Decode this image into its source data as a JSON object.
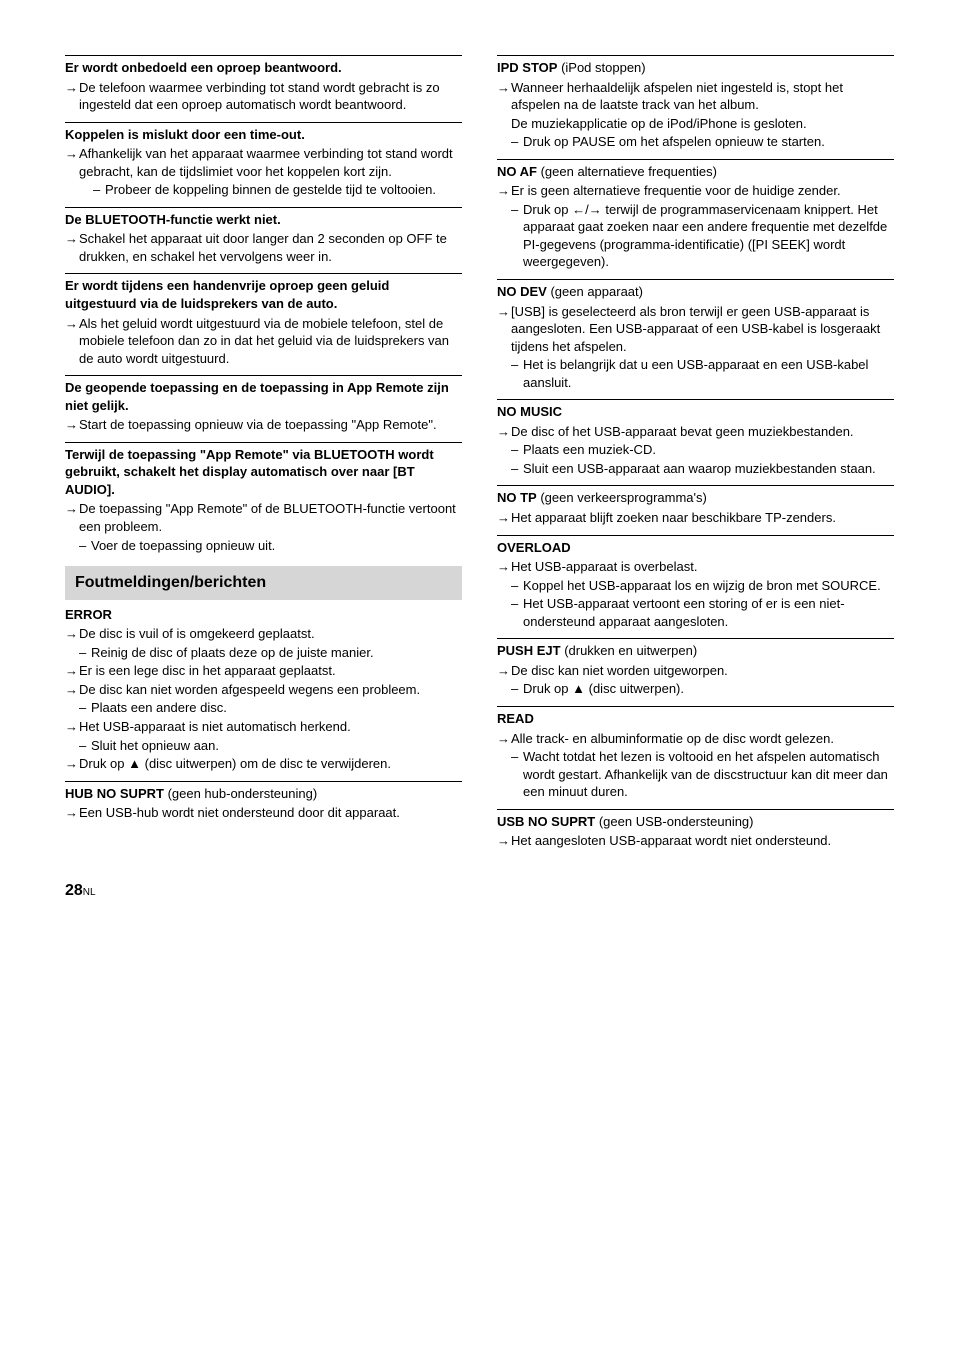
{
  "left": {
    "e1": {
      "title": "Er wordt onbedoeld een oproep beantwoord.",
      "l1": "De telefoon waarmee verbinding tot stand wordt gebracht is zo ingesteld dat een oproep automatisch wordt beantwoord."
    },
    "e2": {
      "title": "Koppelen is mislukt door een time-out.",
      "l1": "Afhankelijk van het apparaat waarmee verbinding tot stand wordt gebracht, kan de tijdslimiet voor het koppelen kort zijn.",
      "d1": "Probeer de koppeling binnen de gestelde tijd te voltooien."
    },
    "e3": {
      "title": "De BLUETOOTH-functie werkt niet.",
      "l1": "Schakel het apparaat uit door langer dan 2 seconden op OFF te drukken, en schakel het vervolgens weer in."
    },
    "e4": {
      "title": "Er wordt tijdens een handenvrije oproep geen geluid uitgestuurd via de luidsprekers van de auto.",
      "l1": "Als het geluid wordt uitgestuurd via de mobiele telefoon, stel de mobiele telefoon dan zo in dat het geluid via de luidsprekers van de auto wordt uitgestuurd."
    },
    "e5": {
      "title": "De geopende toepassing en de toepassing in App Remote zijn niet gelijk.",
      "l1": "Start de toepassing opnieuw via de toepassing \"App Remote\"."
    },
    "e6": {
      "title": "Terwijl de toepassing \"App Remote\" via BLUETOOTH wordt gebruikt, schakelt het display automatisch over naar [BT AUDIO].",
      "l1": "De toepassing \"App Remote\" of de BLUETOOTH-functie vertoont een probleem.",
      "d1": "Voer de toepassing opnieuw uit."
    },
    "sectionHdr": "Foutmeldingen/berichten",
    "e7": {
      "title": "ERROR",
      "l1": "De disc is vuil of is omgekeerd geplaatst.",
      "d1": "Reinig de disc of plaats deze op de juiste manier.",
      "l2": "Er is een lege disc in het apparaat geplaatst.",
      "l3": "De disc kan niet worden afgespeeld wegens een probleem.",
      "d2": "Plaats een andere disc.",
      "l4": "Het USB-apparaat is niet automatisch herkend.",
      "d3": "Sluit het opnieuw aan.",
      "l5a": "Druk op ",
      "l5b": " (disc uitwerpen) om de disc te verwijderen."
    },
    "e8": {
      "title": "HUB NO SUPRT",
      "gloss": " (geen hub-ondersteuning)",
      "l1": "Een USB-hub wordt niet ondersteund door dit apparaat."
    }
  },
  "right": {
    "r1": {
      "title": "IPD STOP",
      "gloss": " (iPod stoppen)",
      "l1": "Wanneer herhaaldelijk afspelen niet ingesteld is, stopt het afspelen na de laatste track van het album.",
      "c1": "De muziekapplicatie op de iPod/iPhone is gesloten.",
      "d1": "Druk op PAUSE om het afspelen opnieuw te starten."
    },
    "r2": {
      "title": "NO AF",
      "gloss": " (geen alternatieve frequenties)",
      "l1": "Er is geen alternatieve frequentie voor de huidige zender.",
      "d1a": "Druk op ",
      "d1b": " terwijl de programmaservicenaam knippert. Het apparaat gaat zoeken naar een andere frequentie met dezelfde PI-gegevens (programma-identificatie) ([PI SEEK] wordt weergegeven)."
    },
    "r3": {
      "title": "NO DEV",
      "gloss": " (geen apparaat)",
      "l1": "[USB] is geselecteerd als bron terwijl er geen USB-apparaat is aangesloten. Een USB-apparaat of een USB-kabel is losgeraakt tijdens het afspelen.",
      "d1": "Het is belangrijk dat u een USB-apparaat en een USB-kabel aansluit."
    },
    "r4": {
      "title": "NO MUSIC",
      "l1": "De disc of het USB-apparaat bevat geen muziekbestanden.",
      "d1": "Plaats een muziek-CD.",
      "d2": "Sluit een USB-apparaat aan waarop muziekbestanden staan."
    },
    "r5": {
      "title": "NO TP",
      "gloss": " (geen verkeersprogramma's)",
      "l1": "Het apparaat blijft zoeken naar beschikbare TP-zenders."
    },
    "r6": {
      "title": "OVERLOAD",
      "l1": "Het USB-apparaat is overbelast.",
      "d1": "Koppel het USB-apparaat los en wijzig de bron met SOURCE.",
      "d2": "Het USB-apparaat vertoont een storing of er is een niet-ondersteund apparaat aangesloten."
    },
    "r7": {
      "title": "PUSH EJT",
      "gloss": " (drukken en uitwerpen)",
      "l1": "De disc kan niet worden uitgeworpen.",
      "d1a": "Druk op ",
      "d1b": " (disc uitwerpen)."
    },
    "r8": {
      "title": "READ",
      "l1": "Alle track- en albuminformatie op de disc wordt gelezen.",
      "d1": "Wacht totdat het lezen is voltooid en het afspelen automatisch wordt gestart. Afhankelijk van de discstructuur kan dit meer dan een minuut duren."
    },
    "r9": {
      "title": "USB NO SUPRT",
      "gloss": " (geen USB-ondersteuning)",
      "l1": "Het aangesloten USB-apparaat wordt niet ondersteund."
    }
  },
  "pageNum": "28",
  "pageLang": "NL",
  "icons": {
    "eject": "▲",
    "seekLeft": "←",
    "seekRight": "→",
    "slash": "/"
  }
}
